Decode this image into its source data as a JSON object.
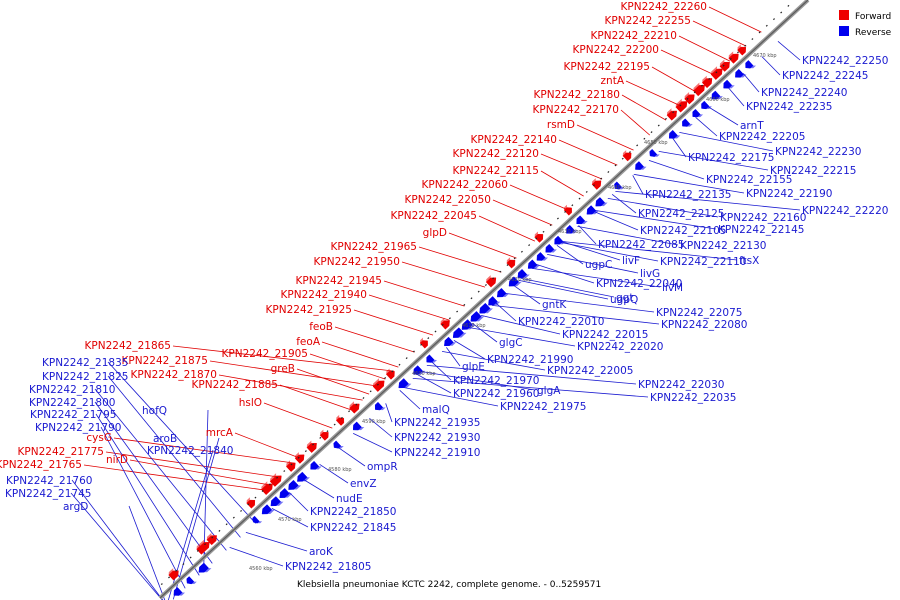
{
  "caption": "Klebsiella pneumoniae KCTC 2242, complete genome. - 0..5259571",
  "legend": [
    {
      "label": "Forward",
      "color": "#ee0000"
    },
    {
      "label": "Reverse",
      "color": "#0000ee"
    }
  ],
  "colors": {
    "forward": "#ee0000",
    "reverse": "#0000ee",
    "axis": "#888888"
  },
  "ticks": [
    "4560 kbp",
    "4570 kbp",
    "4580 kbp",
    "4590 kbp",
    "4600 kbp",
    "4610 kbp",
    "4620 kbp",
    "4630 kbp",
    "4640 kbp",
    "4650 kbp",
    "4660 kbp",
    "4670 kbp"
  ],
  "forward_labels": [
    "KPN2242_22260",
    "KPN2242_22255",
    "KPN2242_22210",
    "KPN2242_22200",
    "KPN2242_22195",
    "zntA",
    "KPN2242_22180",
    "KPN2242_22170",
    "rsmD",
    "KPN2242_22140",
    "KPN2242_22120",
    "KPN2242_22115",
    "KPN2242_22060",
    "KPN2242_22050",
    "KPN2242_22045",
    "glpD",
    "KPN2242_21965",
    "KPN2242_21950",
    "KPN2242_21945",
    "KPN2242_21940",
    "KPN2242_21925",
    "feoB",
    "feoA",
    "KPN2242_21865",
    "KPN2242_21875",
    "KPN2242_21870",
    "KPN2242_21905",
    "greB",
    "KPN2242_21885",
    "hslO",
    "mrcA",
    "cysG",
    "KPN2242_21775",
    "nirD",
    "KPN2242_21765"
  ],
  "reverse_labels": [
    "KPN2242_22250",
    "KPN2242_22245",
    "KPN2242_22240",
    "KPN2242_22235",
    "arnT",
    "KPN2242_22205",
    "KPN2242_22230",
    "KPN2242_22175",
    "KPN2242_22215",
    "KPN2242_22155",
    "KPN2242_22190",
    "KPN2242_22135",
    "KPN2242_22220",
    "KPN2242_22125",
    "KPN2242_22160",
    "KPN2242_22105",
    "KPN2242_22145",
    "KPN2242_22085",
    "KPN2242_22130",
    "livF",
    "ftsX",
    "ugpC",
    "KPN2242_22110",
    "livG",
    "livM",
    "KPN2242_22040",
    "ggt",
    "ugpQ",
    "gntK",
    "KPN2242_22075",
    "KPN2242_22010",
    "KPN2242_22080",
    "KPN2242_22015",
    "glgC",
    "KPN2242_22020",
    "KPN2242_21990",
    "glpE",
    "KPN2242_22005",
    "KPN2242_21970",
    "glgA",
    "KPN2242_21960",
    "KPN2242_22030",
    "KPN2242_21975",
    "KPN2242_22035",
    "malQ",
    "KPN2242_21835",
    "KPN2242_21825",
    "KPN2242_21810",
    "hofQ",
    "KPN2242_21800",
    "KPN2242_21795",
    "KPN2242_21790",
    "aroB",
    "KPN2242_21840",
    "KPN2242_21935",
    "KPN2242_21930",
    "KPN2242_21910",
    "ompR",
    "envZ",
    "KPN2242_21760",
    "KPN2242_21745",
    "nudE",
    "argD",
    "KPN2242_21850",
    "KPN2242_21845",
    "aroK",
    "KPN2242_21805"
  ]
}
